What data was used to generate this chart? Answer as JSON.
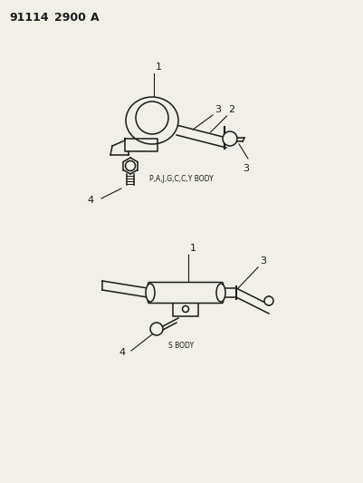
{
  "title_part1": "91114",
  "title_part2": "2900",
  "title_part3": "A",
  "bg_color": "#f0efe8",
  "line_color": "#1a1a1a",
  "text_color": "#1a1a1a",
  "label1_top": "P,A,J,G,C,C,Y BODY",
  "label2_bottom": "S BODY"
}
